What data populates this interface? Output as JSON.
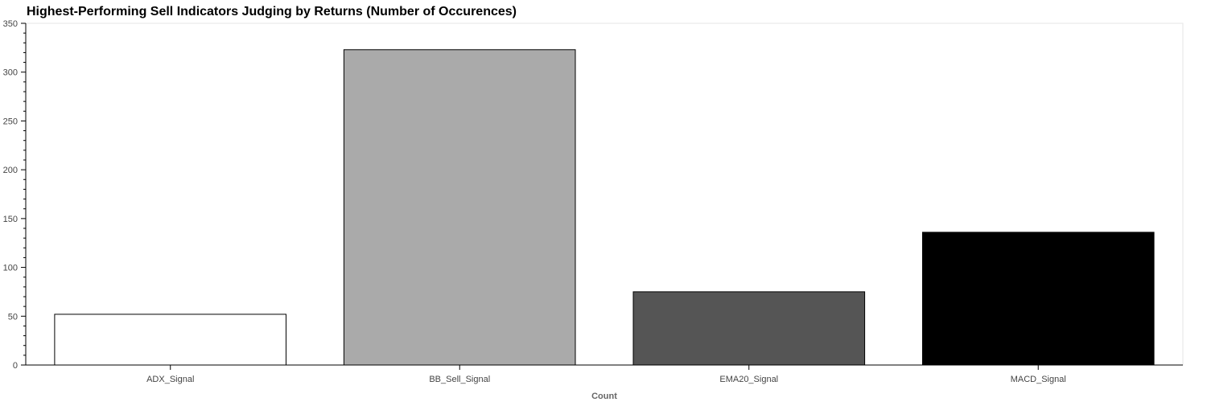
{
  "chart_data": {
    "type": "bar",
    "title": "Highest-Performing Sell Indicators Judging by Returns (Number of Occurences)",
    "xlabel": "Count",
    "ylabel": "",
    "categories": [
      "ADX_Signal",
      "BB_Sell_Signal",
      "EMA20_Signal",
      "MACD_Signal"
    ],
    "values": [
      52,
      323,
      75,
      136
    ],
    "bar_colors": [
      "#ffffff",
      "#aaaaaa",
      "#555555",
      "#000000"
    ],
    "bar_outline_color": "#000000",
    "ylim": [
      0,
      350
    ],
    "yticks": [
      0,
      50,
      100,
      150,
      200,
      250,
      300,
      350
    ],
    "grid": false,
    "legend": "none"
  }
}
